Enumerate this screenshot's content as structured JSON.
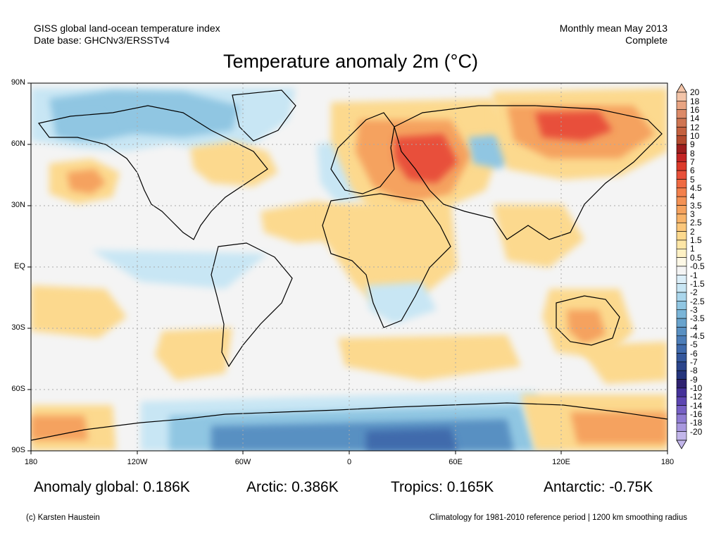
{
  "header": {
    "left_line1": "GISS global land-ocean temperature index",
    "left_line2": "Date base: GHCNv3/ERSSTv4",
    "right_line1": "Monthly mean May 2013",
    "right_line2": "Complete"
  },
  "title": "Temperature anomaly 2m (°C)",
  "lat_labels": [
    "90N",
    "60N",
    "30N",
    "EQ",
    "30S",
    "60S",
    "90S"
  ],
  "lon_labels": [
    "180",
    "120W",
    "60W",
    "0",
    "60E",
    "120E",
    "180"
  ],
  "stats": {
    "global": "Anomaly global: 0.186K",
    "arctic": "Arctic: 0.386K",
    "tropics": "Tropics: 0.165K",
    "antarctic": "Antarctic: -0.75K"
  },
  "footer": {
    "credit": "(c) Karsten Haustein",
    "note": "Climatology for 1981-2010 reference period | 1200 km smoothing radius"
  },
  "legend": {
    "labels": [
      "20",
      "18",
      "16",
      "14",
      "12",
      "10",
      "9",
      "8",
      "7",
      "6",
      "5",
      "4.5",
      "4",
      "3.5",
      "3",
      "2.5",
      "2",
      "1.5",
      "1",
      "0.5",
      "-0.5",
      "-1",
      "-1.5",
      "-2",
      "-2.5",
      "-3",
      "-3.5",
      "-4",
      "-4.5",
      "-5",
      "-6",
      "-7",
      "-8",
      "-9",
      "-10",
      "-12",
      "-14",
      "-16",
      "-18",
      "-20"
    ],
    "colors": [
      "#f3c4a8",
      "#e8a482",
      "#dc8a68",
      "#cf7552",
      "#c4613f",
      "#b44a2e",
      "#9e1e1e",
      "#c42525",
      "#dc3a2a",
      "#e8503a",
      "#ef6a42",
      "#f3804c",
      "#f49255",
      "#f5a25e",
      "#f8b46a",
      "#fbc77b",
      "#fcd98e",
      "#fde6a6",
      "#fef1c4",
      "#fdf8e6",
      "#f4f4f4",
      "#dbeef8",
      "#c8e6f4",
      "#aad6ec",
      "#90c6e2",
      "#7ab5d8",
      "#68a3cd",
      "#5990c2",
      "#4c7db8",
      "#3f6aac",
      "#34579c",
      "#2b458c",
      "#24347c",
      "#2f2270",
      "#45329a",
      "#5d46b2",
      "#7660c4",
      "#8f7cd2",
      "#a898de",
      "#c2b6ea"
    ],
    "group_colors": {
      "strong_warm": "#e8503a",
      "warm": "#f5a25e",
      "mild_warm": "#fcd98e",
      "neutral": "#f4f4f4",
      "mild_cool": "#c8e6f4",
      "cool": "#90c6e2",
      "cold": "#5990c2",
      "very_cold": "#3f6aac"
    }
  }
}
